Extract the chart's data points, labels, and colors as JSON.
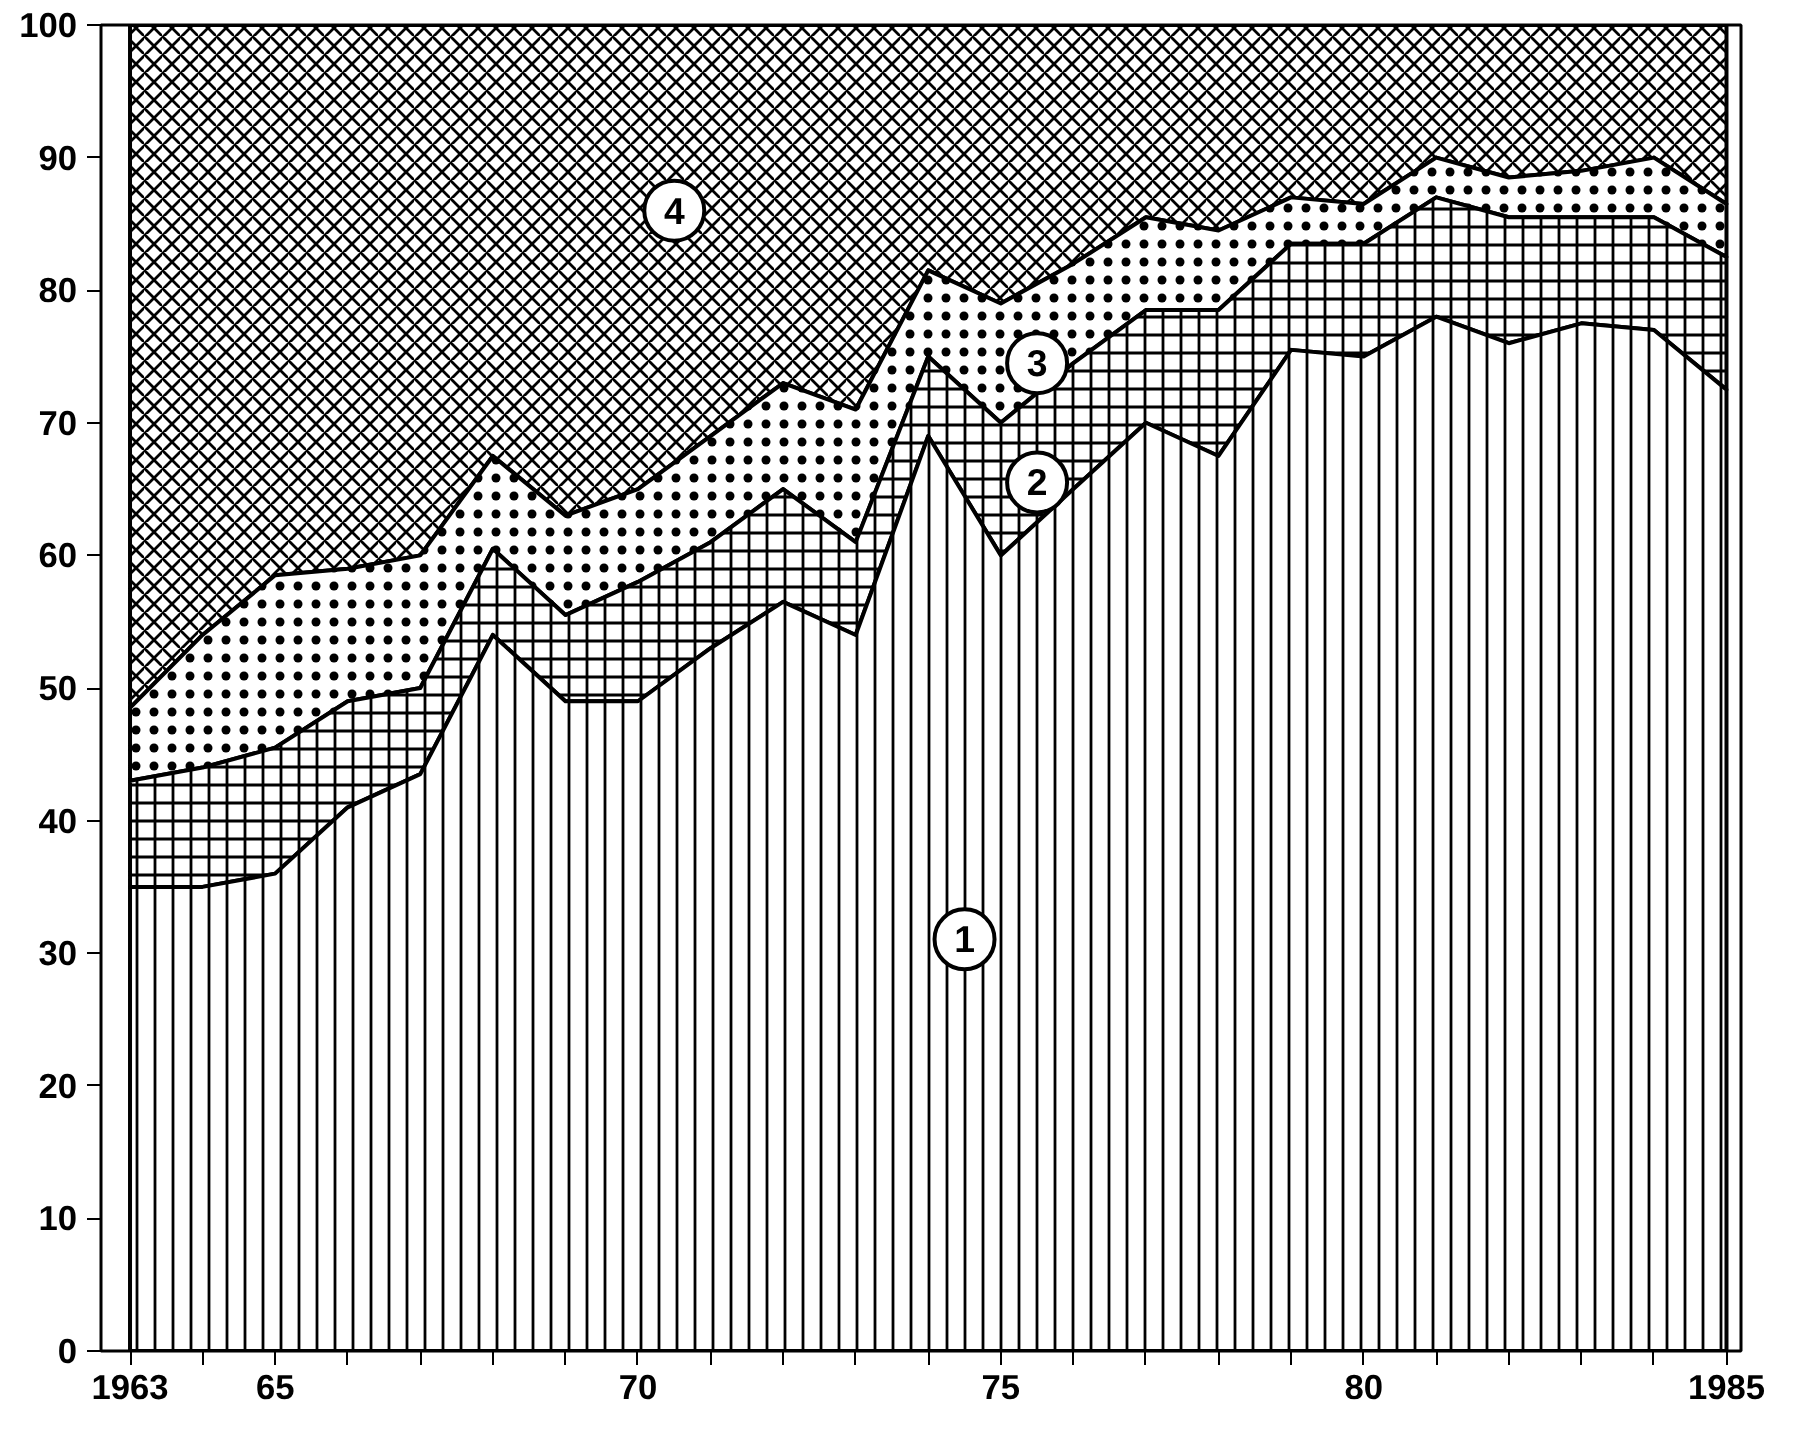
{
  "chart_data": {
    "type": "area",
    "stacked": true,
    "x": [
      1963,
      1964,
      1965,
      1966,
      1967,
      1968,
      1969,
      1970,
      1971,
      1972,
      1973,
      1974,
      1975,
      1976,
      1977,
      1978,
      1979,
      1980,
      1981,
      1982,
      1983,
      1984,
      1985
    ],
    "series": [
      {
        "name": "1",
        "color": "#000000",
        "values": [
          35,
          35,
          36,
          41,
          43.5,
          54,
          49,
          49,
          53,
          56.5,
          54,
          69,
          60,
          65,
          70,
          67.5,
          75.5,
          75,
          78,
          76,
          77.5,
          77,
          72.5
        ]
      },
      {
        "name": "2",
        "color": "#000000",
        "values": [
          8,
          9,
          9.5,
          8,
          6.5,
          6.5,
          6.5,
          9,
          8,
          8.5,
          7,
          6,
          10,
          9.5,
          8.5,
          11,
          8,
          8.5,
          9,
          9.5,
          8,
          8.5,
          10
        ]
      },
      {
        "name": "3",
        "color": "#000000",
        "values": [
          5.5,
          10,
          13,
          10,
          10,
          7,
          7.5,
          7,
          8,
          8,
          10,
          6.5,
          9,
          7.5,
          7,
          6,
          3.5,
          3,
          3,
          3,
          3.5,
          4.5,
          4
        ]
      },
      {
        "name": "4",
        "color": "#000000",
        "values": [
          51.5,
          46,
          41.5,
          41,
          40,
          32.5,
          37,
          35,
          31,
          27,
          29,
          18.5,
          21,
          18,
          14.5,
          15.5,
          13,
          13.5,
          10,
          11.5,
          11,
          10,
          13.5
        ]
      }
    ],
    "xlim": [
      1962.6,
      1985.2
    ],
    "ylim": [
      0,
      100
    ],
    "xticks": [
      {
        "value": 1963,
        "label": "1963"
      },
      {
        "value": 1964,
        "label": null
      },
      {
        "value": 1965,
        "label": "65"
      },
      {
        "value": 1966,
        "label": null
      },
      {
        "value": 1967,
        "label": null
      },
      {
        "value": 1968,
        "label": null
      },
      {
        "value": 1969,
        "label": null
      },
      {
        "value": 1970,
        "label": "70"
      },
      {
        "value": 1971,
        "label": null
      },
      {
        "value": 1972,
        "label": null
      },
      {
        "value": 1973,
        "label": null
      },
      {
        "value": 1974,
        "label": null
      },
      {
        "value": 1975,
        "label": "75"
      },
      {
        "value": 1976,
        "label": null
      },
      {
        "value": 1977,
        "label": null
      },
      {
        "value": 1978,
        "label": null
      },
      {
        "value": 1979,
        "label": null
      },
      {
        "value": 1980,
        "label": "80"
      },
      {
        "value": 1981,
        "label": null
      },
      {
        "value": 1982,
        "label": null
      },
      {
        "value": 1983,
        "label": null
      },
      {
        "value": 1984,
        "label": null
      },
      {
        "value": 1985,
        "label": "1985"
      }
    ],
    "yticks": [
      0,
      10,
      20,
      30,
      40,
      50,
      60,
      70,
      80,
      90,
      100
    ],
    "grid": false
  }
}
